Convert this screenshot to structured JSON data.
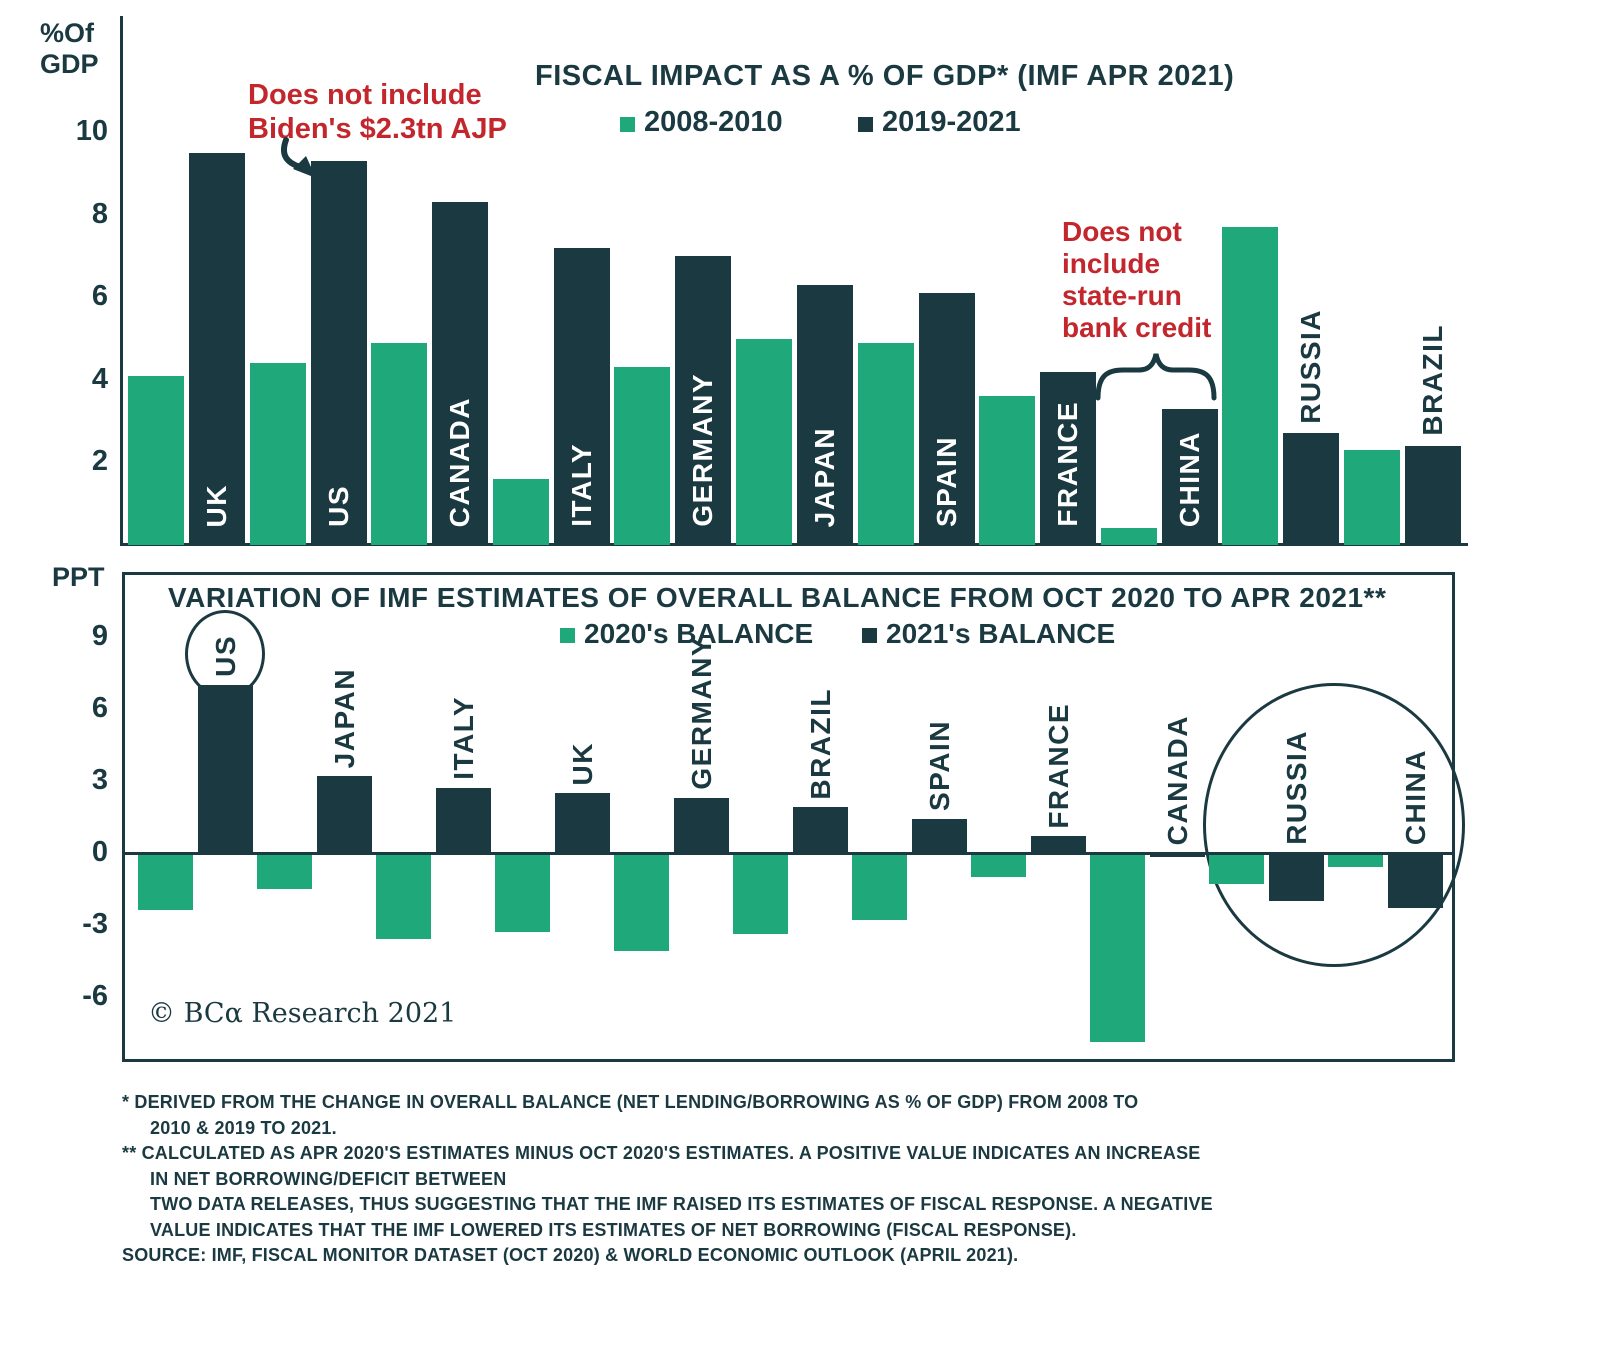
{
  "colors": {
    "green": "#1FA87A",
    "dark": "#1A3940",
    "red": "#C2272D"
  },
  "copyright": "© BCα Research 2021",
  "chart_data": [
    {
      "type": "bar",
      "title": "FISCAL IMPACT AS A % OF GDP* (IMF APR 2021)",
      "ylabel": "%Of\nGDP",
      "yticks": [
        2,
        4,
        6,
        8,
        10
      ],
      "ylim": [
        0,
        12.8
      ],
      "grid": false,
      "legend_position": "top-center",
      "legend": [
        "2008-2010",
        "2019-2021"
      ],
      "categories": [
        "UK",
        "US",
        "CANADA",
        "ITALY",
        "GERMANY",
        "JAPAN",
        "SPAIN",
        "FRANCE",
        "CHINA",
        "RUSSIA",
        "BRAZIL"
      ],
      "series": [
        {
          "name": "2008-2010",
          "values": [
            4.1,
            4.4,
            4.9,
            1.6,
            4.3,
            5.0,
            4.9,
            3.6,
            0.4,
            7.7,
            2.3
          ]
        },
        {
          "name": "2019-2021",
          "values": [
            9.5,
            9.3,
            8.3,
            7.2,
            7.0,
            6.3,
            6.1,
            4.2,
            3.3,
            2.7,
            2.4
          ]
        }
      ],
      "label_inside": [
        true,
        true,
        true,
        true,
        true,
        true,
        true,
        true,
        true,
        false,
        false
      ],
      "annotations": [
        {
          "text": "Does not include\nBiden's $2.3tn AJP",
          "target": "US"
        },
        {
          "text": "Does not\ninclude\nstate-run\nbank credit",
          "target": "CHINA"
        }
      ]
    },
    {
      "type": "bar",
      "title": "VARIATION OF IMF ESTIMATES OF OVERALL BALANCE FROM OCT 2020 TO APR 2021**",
      "ylabel": "PPT",
      "yticks": [
        9,
        6,
        3,
        0,
        -3,
        -6
      ],
      "ylim": [
        -8.7,
        11
      ],
      "grid": false,
      "legend_position": "top-center",
      "legend": [
        "2020's BALANCE",
        "2021's BALANCE"
      ],
      "categories": [
        "US",
        "JAPAN",
        "ITALY",
        "UK",
        "GERMANY",
        "BRAZIL",
        "SPAIN",
        "FRANCE",
        "CANADA",
        "RUSSIA",
        "CHINA"
      ],
      "series": [
        {
          "name": "2020's BALANCE",
          "values": [
            -2.3,
            -1.4,
            -3.5,
            -3.2,
            -4.0,
            -3.3,
            -2.7,
            -0.9,
            -7.8,
            -1.2,
            -0.5
          ]
        },
        {
          "name": "2021's BALANCE",
          "values": [
            7.0,
            3.2,
            2.7,
            2.5,
            2.3,
            1.9,
            1.4,
            0.7,
            -0.1,
            -1.9,
            -2.2
          ]
        }
      ],
      "circled": [
        "US",
        "RUSSIA",
        "CHINA"
      ]
    }
  ],
  "footnotes": {
    "lines": [
      {
        "text": "*   DERIVED FROM THE CHANGE IN OVERALL BALANCE (NET LENDING/BORROWING AS % OF GDP) FROM 2008 TO",
        "indent": 0
      },
      {
        "text": "2010 & 2019 TO 2021.",
        "indent": 1
      },
      {
        "text": "** CALCULATED AS APR 2020'S ESTIMATES MINUS OCT 2020'S ESTIMATES. A POSITIVE VALUE INDICATES AN INCREASE",
        "indent": 0
      },
      {
        "text": "IN NET BORROWING/DEFICIT BETWEEN",
        "indent": 1
      },
      {
        "text": "TWO DATA RELEASES, THUS SUGGESTING THAT THE IMF RAISED ITS ESTIMATES OF FISCAL RESPONSE. A NEGATIVE",
        "indent": 1
      },
      {
        "text": "VALUE INDICATES THAT THE IMF LOWERED ITS ESTIMATES OF NET BORROWING (FISCAL RESPONSE).",
        "indent": 1
      },
      {
        "text": "SOURCE: IMF, FISCAL MONITOR DATASET (OCT 2020) & WORLD ECONOMIC OUTLOOK (APRIL 2021).",
        "indent": 0
      }
    ]
  }
}
